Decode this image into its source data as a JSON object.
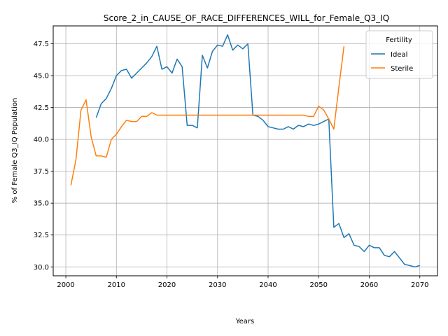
{
  "chart_data": {
    "type": "line",
    "title": "Score_2_in_CAUSE_OF_RACE_DIFFERENCES_WILL_for_Female_Q3_IQ",
    "xlabel": "Years",
    "ylabel": "% of Female Q3_IQ Population",
    "xlim": [
      1997.5,
      2073.5
    ],
    "ylim": [
      29.3,
      48.9
    ],
    "xticks": [
      2000,
      2010,
      2020,
      2030,
      2040,
      2050,
      2060,
      2070
    ],
    "yticks": [
      30.0,
      32.5,
      35.0,
      37.5,
      40.0,
      42.5,
      45.0,
      47.5
    ],
    "xtick_labels": [
      "2000",
      "2010",
      "2020",
      "2030",
      "2040",
      "2050",
      "2060",
      "2070"
    ],
    "ytick_labels": [
      "30.0",
      "32.5",
      "35.0",
      "37.5",
      "40.0",
      "42.5",
      "45.0",
      "47.5"
    ],
    "grid": true,
    "legend": {
      "title": "Fertility",
      "placement": "top-right"
    },
    "series": [
      {
        "name": "Ideal",
        "color": "#1f77b4",
        "x": [
          2006,
          2007,
          2008,
          2009,
          2010,
          2011,
          2012,
          2013,
          2014,
          2015,
          2016,
          2017,
          2018,
          2019,
          2020,
          2021,
          2022,
          2023,
          2024,
          2025,
          2026,
          2027,
          2028,
          2029,
          2030,
          2031,
          2032,
          2033,
          2034,
          2035,
          2036,
          2037,
          2038,
          2039,
          2040,
          2041,
          2042,
          2043,
          2044,
          2045,
          2046,
          2047,
          2048,
          2049,
          2050,
          2051,
          2052,
          2053,
          2054,
          2055,
          2056,
          2057,
          2058,
          2059,
          2060,
          2061,
          2062,
          2063,
          2064,
          2065,
          2066,
          2067,
          2068,
          2069,
          2070
        ],
        "y": [
          41.7,
          42.8,
          43.2,
          44.0,
          45.0,
          45.4,
          45.5,
          44.8,
          45.2,
          45.6,
          46.0,
          46.5,
          47.3,
          45.5,
          45.7,
          45.2,
          46.3,
          45.7,
          41.1,
          41.1,
          40.9,
          46.6,
          45.6,
          46.9,
          47.4,
          47.3,
          48.2,
          47.0,
          47.4,
          47.1,
          47.5,
          41.9,
          41.8,
          41.5,
          41.0,
          40.9,
          40.8,
          40.8,
          41.0,
          40.8,
          41.1,
          41.0,
          41.2,
          41.1,
          41.2,
          41.4,
          41.6,
          33.1,
          33.4,
          32.3,
          32.6,
          31.7,
          31.6,
          31.2,
          31.7,
          31.5,
          31.5,
          30.9,
          30.8,
          31.2,
          30.7,
          30.2,
          30.1,
          30.0,
          30.1
        ]
      },
      {
        "name": "Sterile",
        "color": "#ff7f0e",
        "x": [
          2001,
          2002,
          2003,
          2004,
          2005,
          2006,
          2007,
          2008,
          2009,
          2010,
          2011,
          2012,
          2013,
          2014,
          2015,
          2016,
          2017,
          2018,
          2019,
          2020,
          2021,
          2022,
          2023,
          2024,
          2025,
          2026,
          2027,
          2028,
          2029,
          2030,
          2031,
          2032,
          2033,
          2034,
          2035,
          2036,
          2037,
          2038,
          2039,
          2040,
          2041,
          2042,
          2043,
          2044,
          2045,
          2046,
          2047,
          2048,
          2049,
          2050,
          2051,
          2052,
          2053,
          2054,
          2055
        ],
        "y": [
          36.4,
          38.4,
          42.3,
          43.1,
          40.2,
          38.7,
          38.7,
          38.6,
          40.0,
          40.4,
          41.0,
          41.5,
          41.4,
          41.4,
          41.8,
          41.8,
          42.1,
          41.9,
          41.9,
          41.9,
          41.9,
          41.9,
          41.9,
          41.9,
          41.9,
          41.9,
          41.9,
          41.9,
          41.9,
          41.9,
          41.9,
          41.9,
          41.9,
          41.9,
          41.9,
          41.9,
          41.9,
          41.9,
          41.9,
          41.9,
          41.9,
          41.9,
          41.9,
          41.9,
          41.9,
          41.9,
          41.9,
          41.8,
          41.8,
          42.6,
          42.3,
          41.6,
          40.8,
          44.1,
          47.3
        ]
      }
    ]
  }
}
